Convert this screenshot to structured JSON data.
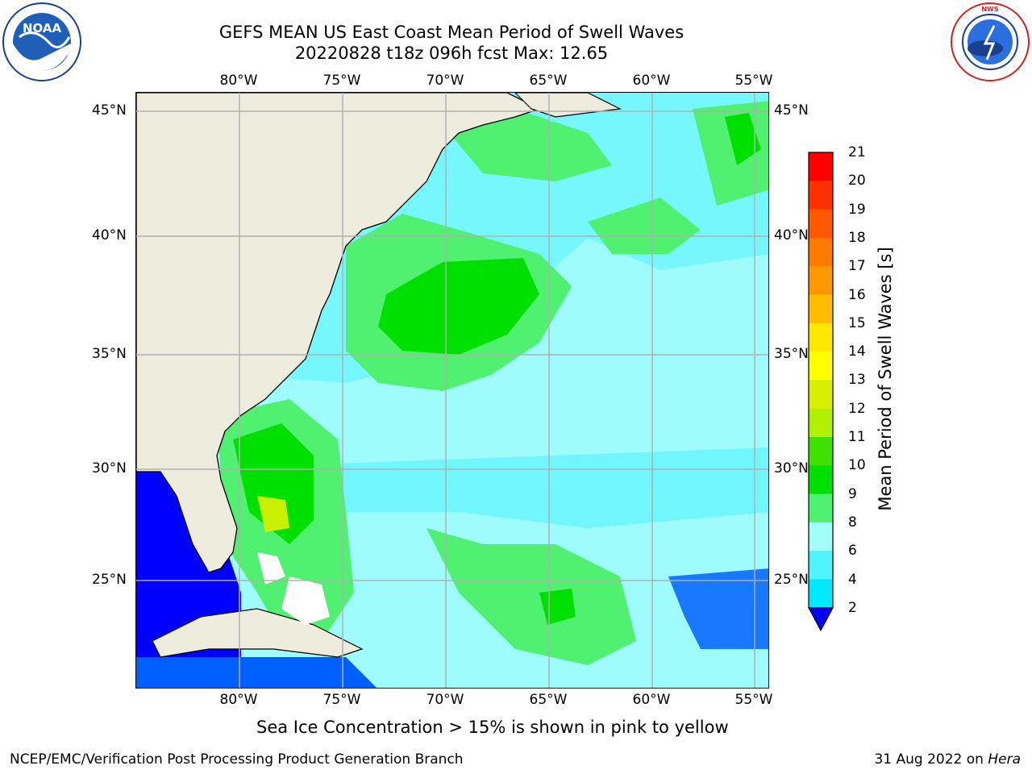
{
  "title": {
    "line1": "GEFS MEAN US East Coast Mean Period of Swell Waves",
    "line2": "20220828 t18z 096h fcst   Max: 12.65"
  },
  "logos": {
    "left": {
      "name": "noaa-logo",
      "text": "NOAA",
      "ring_text": "NATIONAL OCEANIC AND ATMOSPHERIC ADMINISTRATION · U.S. DEPARTMENT OF COMMERCE"
    },
    "right": {
      "name": "nws-logo",
      "ring_text": "NATIONAL WEATHER SERVICE"
    }
  },
  "map": {
    "lon_ticks": [
      "80°W",
      "75°W",
      "70°W",
      "65°W",
      "60°W",
      "55°W"
    ],
    "lat_ticks": [
      "45°N",
      "40°N",
      "35°N",
      "30°N",
      "25°N"
    ],
    "land_color": "#eeecdc",
    "grid_color": "#b0b0b0"
  },
  "colorbar": {
    "title": "Mean Period of Swell Waves [s]",
    "labels": [
      "21",
      "20",
      "19",
      "18",
      "17",
      "16",
      "15",
      "14",
      "13",
      "12",
      "11",
      "10",
      "9",
      "8",
      "6",
      "4",
      "2"
    ],
    "colors": [
      "#ff0000",
      "#ff3000",
      "#ff5800",
      "#ff7800",
      "#ff9800",
      "#ffbc00",
      "#ffe800",
      "#ffff00",
      "#d8f000",
      "#b0f000",
      "#40e000",
      "#00e000",
      "#50f070",
      "#a0fff8",
      "#50f4ff",
      "#00e8ff",
      "#00b0ff",
      "#0060ff"
    ],
    "extend_color": "#0000ff"
  },
  "caption": "Sea Ice Concentration > 15% is shown in pink to yellow",
  "footer": {
    "left": "NCEP/EMC/Verification Post Processing Product Generation Branch",
    "date": "31 Aug 2022 on",
    "machine": "Hera"
  }
}
